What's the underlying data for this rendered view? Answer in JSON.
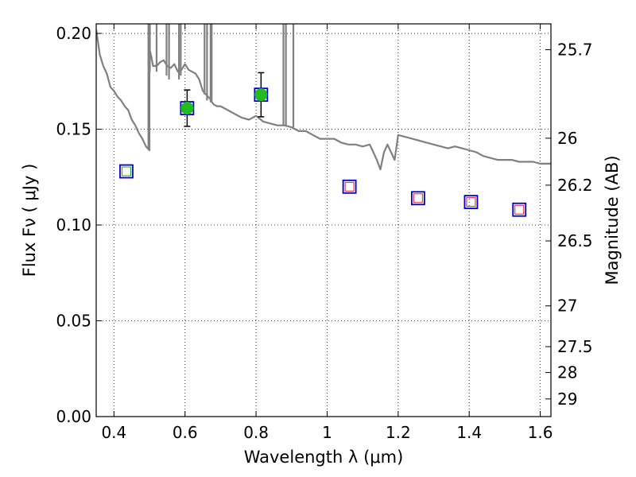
{
  "chart_data": {
    "type": "scatter",
    "xlabel": "Wavelength  λ (μm)",
    "ylabel": "Flux  Fν  ( μJy )",
    "ylabel_right": "Magnitude (AB)",
    "xlim": [
      0.35,
      1.63
    ],
    "ylim": [
      0.0,
      0.205
    ],
    "grid": true,
    "x_ticks": [
      0.4,
      0.6,
      0.8,
      1.0,
      1.2,
      1.4,
      1.6
    ],
    "x_tick_labels": [
      "0.4",
      "0.6",
      "0.8",
      "1",
      "1.2",
      "1.4",
      "1.6"
    ],
    "y_ticks": [
      0.0,
      0.05,
      0.1,
      0.15,
      0.2
    ],
    "y_tick_labels": [
      "0.00",
      "0.05",
      "0.10",
      "0.15",
      "0.20"
    ],
    "right_ticks": [
      {
        "label": "25.7",
        "flux": 0.1915
      },
      {
        "label": "26",
        "flux": 0.1453
      },
      {
        "label": "26.2",
        "flux": 0.1208
      },
      {
        "label": "26.5",
        "flux": 0.0917
      },
      {
        "label": "27",
        "flux": 0.0578
      },
      {
        "label": "27.5",
        "flux": 0.0365
      },
      {
        "label": "28",
        "flux": 0.023
      },
      {
        "label": "29",
        "flux": 0.0092
      }
    ],
    "model_spectrum": {
      "color": "#808080",
      "x": [
        0.35,
        0.36,
        0.37,
        0.38,
        0.39,
        0.4,
        0.41,
        0.42,
        0.43,
        0.44,
        0.45,
        0.46,
        0.47,
        0.48,
        0.49,
        0.495,
        0.5,
        0.5,
        0.505,
        0.51,
        0.52,
        0.53,
        0.54,
        0.55,
        0.56,
        0.57,
        0.58,
        0.59,
        0.6,
        0.61,
        0.62,
        0.63,
        0.64,
        0.65,
        0.66,
        0.67,
        0.68,
        0.69,
        0.7,
        0.72,
        0.74,
        0.76,
        0.78,
        0.8,
        0.82,
        0.84,
        0.86,
        0.88,
        0.9,
        0.92,
        0.94,
        0.96,
        0.98,
        1.0,
        1.02,
        1.04,
        1.06,
        1.08,
        1.1,
        1.12,
        1.13,
        1.14,
        1.15,
        1.16,
        1.17,
        1.18,
        1.19,
        1.2,
        1.22,
        1.24,
        1.26,
        1.28,
        1.3,
        1.32,
        1.34,
        1.36,
        1.38,
        1.4,
        1.42,
        1.44,
        1.46,
        1.48,
        1.5,
        1.52,
        1.54,
        1.56,
        1.58,
        1.6,
        1.63
      ],
      "y": [
        0.202,
        0.189,
        0.183,
        0.179,
        0.172,
        0.17,
        0.167,
        0.165,
        0.162,
        0.16,
        0.155,
        0.152,
        0.148,
        0.145,
        0.141,
        0.14,
        0.139,
        0.192,
        0.188,
        0.183,
        0.183,
        0.185,
        0.186,
        0.183,
        0.182,
        0.184,
        0.18,
        0.181,
        0.184,
        0.181,
        0.18,
        0.179,
        0.176,
        0.17,
        0.168,
        0.166,
        0.163,
        0.162,
        0.162,
        0.16,
        0.158,
        0.156,
        0.155,
        0.157,
        0.154,
        0.153,
        0.152,
        0.152,
        0.151,
        0.149,
        0.149,
        0.147,
        0.145,
        0.145,
        0.145,
        0.143,
        0.142,
        0.142,
        0.141,
        0.142,
        0.138,
        0.134,
        0.129,
        0.138,
        0.142,
        0.138,
        0.134,
        0.147,
        0.146,
        0.145,
        0.144,
        0.143,
        0.142,
        0.141,
        0.14,
        0.141,
        0.14,
        0.139,
        0.138,
        0.136,
        0.135,
        0.134,
        0.134,
        0.134,
        0.133,
        0.133,
        0.133,
        0.132,
        0.132
      ]
    },
    "emission_lines": [
      {
        "x": 0.497,
        "y_low": 0.14
      },
      {
        "x": 0.501,
        "y_low": 0.18
      },
      {
        "x": 0.52,
        "y_low": 0.18
      },
      {
        "x": 0.548,
        "y_low": 0.178
      },
      {
        "x": 0.555,
        "y_low": 0.176
      },
      {
        "x": 0.583,
        "y_low": 0.176
      },
      {
        "x": 0.588,
        "y_low": 0.178
      },
      {
        "x": 0.655,
        "y_low": 0.168
      },
      {
        "x": 0.662,
        "y_low": 0.165
      },
      {
        "x": 0.672,
        "y_low": 0.164
      },
      {
        "x": 0.675,
        "y_low": 0.164
      },
      {
        "x": 0.877,
        "y_low": 0.152
      },
      {
        "x": 0.884,
        "y_low": 0.152
      },
      {
        "x": 0.905,
        "y_low": 0.151
      }
    ],
    "observed_points": {
      "fill": "#22bb22",
      "points": [
        {
          "x": 0.606,
          "y": 0.161,
          "err": 0.0095
        },
        {
          "x": 0.814,
          "y": 0.168,
          "err": 0.0115
        }
      ]
    },
    "model_bandpass_squares": {
      "outer_color": "#0000cc",
      "points": [
        {
          "x": 0.435,
          "y": 0.128,
          "inner_color": "#22aa22"
        },
        {
          "x": 0.606,
          "y": 0.161,
          "inner_color": "#22aa22"
        },
        {
          "x": 0.814,
          "y": 0.168,
          "inner_color": "#22aa22"
        },
        {
          "x": 1.063,
          "y": 0.12,
          "inner_color": "#dd2222"
        },
        {
          "x": 1.256,
          "y": 0.114,
          "inner_color": "#dd2222"
        },
        {
          "x": 1.405,
          "y": 0.112,
          "inner_color": "#dd2222"
        },
        {
          "x": 1.541,
          "y": 0.108,
          "inner_color": "#dd2222"
        }
      ]
    }
  }
}
